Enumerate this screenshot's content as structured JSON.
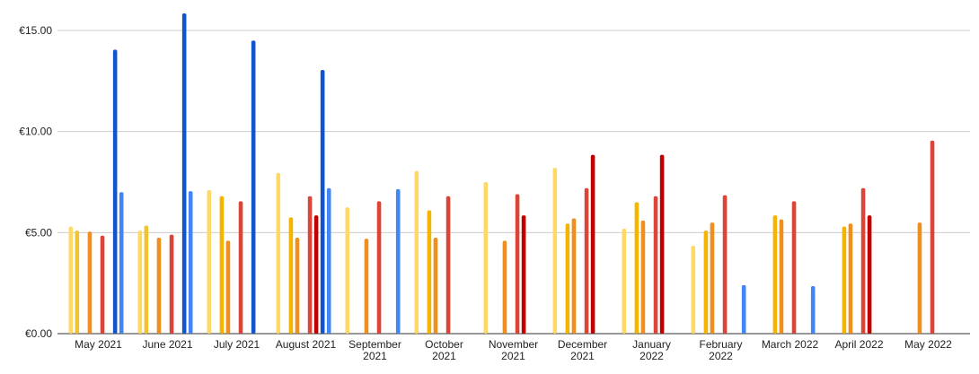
{
  "chart_data": {
    "type": "bar",
    "title": "",
    "xlabel": "",
    "ylabel": "",
    "ylim": [
      0,
      15
    ],
    "yticks": [
      {
        "value": 0,
        "label": "€0.00"
      },
      {
        "value": 5,
        "label": "€5.00"
      },
      {
        "value": 10,
        "label": "€10.00"
      },
      {
        "value": 15,
        "label": "€15.00"
      }
    ],
    "grid": true,
    "legend": "none",
    "categories": [
      [
        "May 2021"
      ],
      [
        "June 2021"
      ],
      [
        "July 2021"
      ],
      [
        "August 2021"
      ],
      [
        "September",
        "2021"
      ],
      [
        "October",
        "2021"
      ],
      [
        "November",
        "2021"
      ],
      [
        "December",
        "2021"
      ],
      [
        "January",
        "2022"
      ],
      [
        "February",
        "2022"
      ],
      [
        "March 2022"
      ],
      [
        "April 2022"
      ],
      [
        "May 2022"
      ]
    ],
    "series_colors": [
      "#ffd966",
      "#f1c232",
      "#f4b400",
      "#ef8f1f",
      "#e8503a",
      "#db4437",
      "#c00000",
      "#1155cc",
      "#4285f4"
    ],
    "series": [
      {
        "values": [
          5.3,
          5.1,
          7.1,
          7.95,
          6.25,
          8.05,
          7.5,
          8.2,
          5.2,
          4.35,
          null,
          null,
          null
        ]
      },
      {
        "values": [
          5.1,
          5.35,
          null,
          null,
          null,
          null,
          null,
          null,
          null,
          null,
          null,
          null,
          null
        ]
      },
      {
        "values": [
          null,
          null,
          6.8,
          5.75,
          null,
          6.1,
          null,
          5.45,
          6.5,
          5.1,
          5.85,
          5.3,
          null
        ]
      },
      {
        "values": [
          5.05,
          4.75,
          4.6,
          4.75,
          4.7,
          4.75,
          4.6,
          5.7,
          5.6,
          5.5,
          5.65,
          5.45,
          5.5
        ]
      },
      {
        "values": [
          null,
          null,
          null,
          null,
          null,
          null,
          null,
          null,
          null,
          null,
          null,
          null,
          null
        ]
      },
      {
        "values": [
          4.85,
          4.9,
          6.55,
          6.8,
          6.55,
          6.8,
          6.9,
          7.2,
          6.8,
          6.85,
          6.55,
          7.2,
          9.55
        ]
      },
      {
        "values": [
          null,
          null,
          null,
          5.85,
          null,
          null,
          5.85,
          8.85,
          8.85,
          null,
          null,
          5.85,
          null
        ]
      },
      {
        "values": [
          14.05,
          15.85,
          14.5,
          13.05,
          null,
          null,
          null,
          null,
          null,
          null,
          null,
          null,
          null
        ]
      },
      {
        "values": [
          7.0,
          7.05,
          null,
          7.2,
          7.15,
          null,
          null,
          null,
          null,
          2.4,
          2.35,
          null,
          null
        ]
      }
    ]
  }
}
